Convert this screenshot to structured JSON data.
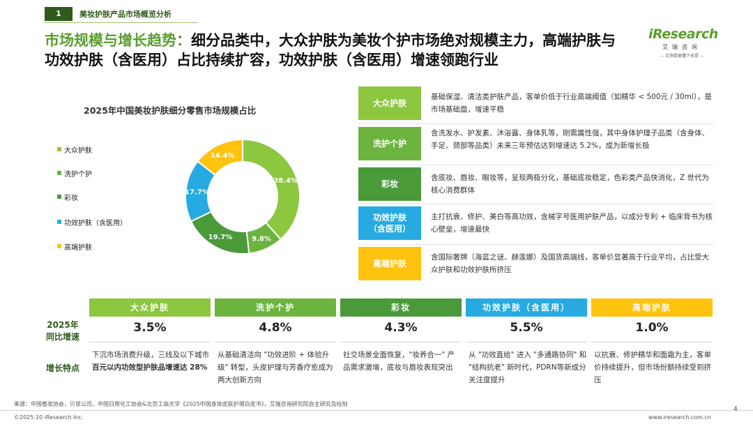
{
  "section": {
    "number": "1",
    "name": "美妆护肤产品市场概览分析"
  },
  "headline": {
    "highlight": "市场规模与增长趋势：",
    "rest": "细分品类中，大众护肤为美妆个护市场绝对规模主力，高端护肤与功效护肤（含医用）占比持续扩容，功效护肤（含医用）增速领跑行业"
  },
  "logo": {
    "word": "iResearch",
    "cn": "艾瑞咨询",
    "tagline": "— 又快数据懂下去提 —"
  },
  "colors": {
    "dark_green": "#2e5a1c",
    "mass": "#8dc63f",
    "wash": "#6cb33f",
    "makeup": "#4a9a3a",
    "efficacy": "#27aae1",
    "premium": "#ffc20e"
  },
  "chart_data": {
    "type": "pie",
    "variant": "donut",
    "title": "2025年中国美妆护肤细分零售市场规模占比",
    "categories": [
      "大众护肤",
      "洗护个护",
      "彩妆",
      "功效护肤（含医用）",
      "高端护肤"
    ],
    "values": [
      38.4,
      9.8,
      19.7,
      17.7,
      14.4
    ],
    "labels": [
      "38.4%",
      "9.8%",
      "19.7%",
      "17.7%",
      "14.4%"
    ],
    "colors": [
      "#8dc63f",
      "#6cb33f",
      "#4a9a3a",
      "#27aae1",
      "#ffc20e"
    ],
    "legend_position": "left"
  },
  "categories": [
    {
      "name": "大众护肤",
      "desc": "基础保湿、清洁类护肤产品，客单价低于行业高端阈值（如精华 < 500元 / 30ml），是市场基础盘，增速平稳"
    },
    {
      "name": "洗护个护",
      "desc": "含洗发水、护发素、沐浴露、身体乳等，刚需属性强，其中身体护理子品类（含身体、手足、颈部等品类）未来三年预估达到增速达 5.2%，成为新增长极"
    },
    {
      "name": "彩妆",
      "desc": "含底妆、唇妆、眼妆等，呈现两极分化，基础底妆稳定，色彩类产品快消化，Z 世代为核心消费群体"
    },
    {
      "name": "功效护肤（含医用）",
      "name_line1": "功效护肤",
      "name_line2": "（含医用）",
      "desc": "主打抗衰、修护、美白等高功效，含械字号医用护肤产品，以成分专利 + 临床背书为核心壁垒，增速最快"
    },
    {
      "name": "高端护肤",
      "desc": "含国际奢牌（海蓝之谜、赫莲娜）及国货高端线，客单价显著高于行业平均，占比受大众护肤和功效护肤所挤压"
    }
  ],
  "growth": {
    "row_label_yoy": "2025年同比增速",
    "row_label_yoy_l1": "2025年",
    "row_label_yoy_l2": "同比增速",
    "row_label_feature": "增长特点",
    "items": [
      {
        "name": "大众护肤",
        "rate": "3.5%",
        "feature_pre": "下沉市场消费升级，三线及以下城市",
        "feature_bold": "百元以内功效型护肤品增速达 28%"
      },
      {
        "name": "洗护个护",
        "rate": "4.8%",
        "feature_pre": "从基础清洁向 \"功效进阶 + 体验升级\" 转型，头皮护理与芳香疗愈成为两大创新方向",
        "feature_bold": ""
      },
      {
        "name": "彩妆",
        "rate": "4.3%",
        "feature_pre": "社交场景全面恢复，\"妆养合一\" 产品需求激增，底妆与唇妆表现突出",
        "feature_bold": ""
      },
      {
        "name": "功效护肤（含医用）",
        "rate": "5.5%",
        "feature_pre": "从 \"功效直给\" 进入 \"多通路协同\" 和 \"结构抗老\" 新时代，PDRN等新成分关注度提升",
        "feature_bold": ""
      },
      {
        "name": "高端护肤",
        "rate": "1.0%",
        "feature_pre": "以抗衰、修护精华和面霜为主，客单价持续提升，但市场份额持续受到挤压",
        "feature_bold": ""
      }
    ]
  },
  "footer": {
    "source": "来源：中国香妆协会，贝恩公司，中国日用化工协会&北京工商大学《2025中国身体皮肤护理白皮书》，艾瑞咨询研究院自主研究及绘制",
    "copyright": "©2025.10 iResearch Inc.",
    "website": "www.iresearch.com.cn",
    "page": "4"
  }
}
